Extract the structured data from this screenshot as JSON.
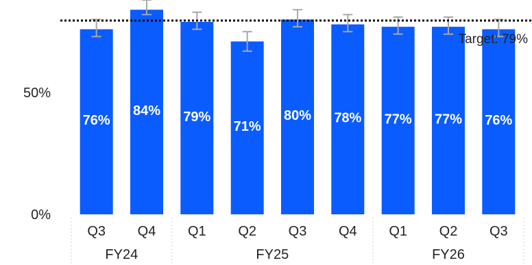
{
  "chart_data": {
    "type": "bar",
    "categories": [
      "Q3",
      "Q4",
      "Q1",
      "Q2",
      "Q3",
      "Q4",
      "Q1",
      "Q2",
      "Q3"
    ],
    "groups": [
      {
        "label": "FY24",
        "count": 2
      },
      {
        "label": "FY25",
        "count": 4
      },
      {
        "label": "FY26",
        "count": 3
      }
    ],
    "values": [
      76,
      84,
      79,
      71,
      80,
      78,
      77,
      77,
      76
    ],
    "data_labels": [
      "76%",
      "84%",
      "79%",
      "71%",
      "80%",
      "78%",
      "77%",
      "77%",
      "76%"
    ],
    "error_low": [
      73,
      82,
      76,
      67,
      77,
      75,
      74,
      74,
      73
    ],
    "error_high": [
      80,
      88,
      83,
      75,
      84,
      82,
      81,
      81,
      80
    ],
    "yticks": [
      {
        "value": 0,
        "label": "0%"
      },
      {
        "value": 50,
        "label": "50%"
      }
    ],
    "ylim": [
      0,
      88
    ],
    "target": {
      "value": 79,
      "label": "Target: 79%"
    },
    "bar_color": "#0a5cff",
    "error_color": "#a8a8a8",
    "target_color": "#000000",
    "grid": false,
    "legend": "none"
  }
}
